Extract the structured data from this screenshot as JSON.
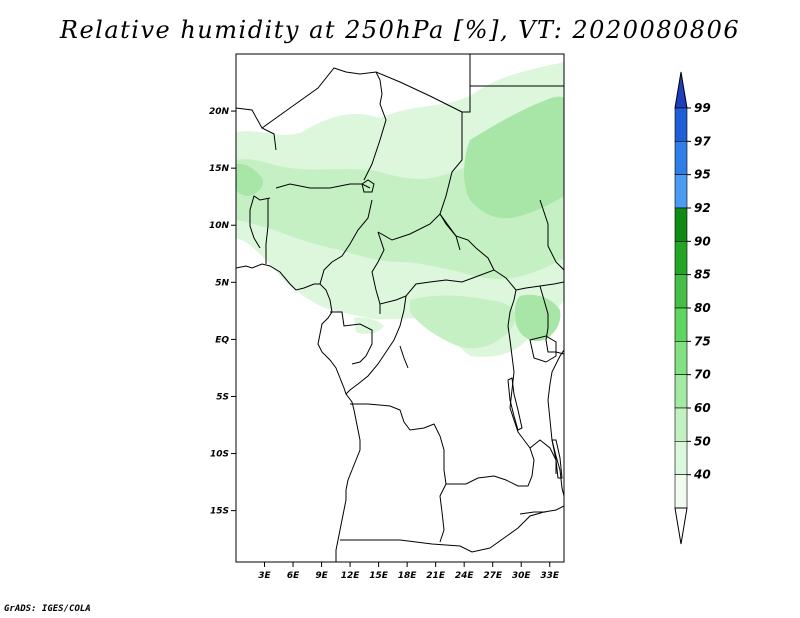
{
  "title": "Relative humidity at 250hPa [%], VT: 2020080806",
  "credit": "GrADS: IGES/COLA",
  "map": {
    "lon_range": [
      0,
      34.5
    ],
    "lat_range": [
      -19.5,
      25
    ],
    "lat_ticks": [
      {
        "value": 20,
        "label": "20N"
      },
      {
        "value": 15,
        "label": "15N"
      },
      {
        "value": 10,
        "label": "10N"
      },
      {
        "value": 5,
        "label": "5N"
      },
      {
        "value": 0,
        "label": "EQ"
      },
      {
        "value": -5,
        "label": "5S"
      },
      {
        "value": -10,
        "label": "10S"
      },
      {
        "value": -15,
        "label": "15S"
      }
    ],
    "lon_ticks": [
      {
        "value": 3,
        "label": "3E"
      },
      {
        "value": 6,
        "label": "6E"
      },
      {
        "value": 9,
        "label": "9E"
      },
      {
        "value": 12,
        "label": "12E"
      },
      {
        "value": 15,
        "label": "15E"
      },
      {
        "value": 18,
        "label": "18E"
      },
      {
        "value": 21,
        "label": "21E"
      },
      {
        "value": 24,
        "label": "24E"
      },
      {
        "value": 27,
        "label": "27E"
      },
      {
        "value": 30,
        "label": "30E"
      },
      {
        "value": 33,
        "label": "33E"
      }
    ]
  },
  "colorbar": {
    "levels": [
      "99",
      "97",
      "95",
      "92",
      "90",
      "85",
      "80",
      "75",
      "70",
      "60",
      "50",
      "40"
    ],
    "colors": [
      "#1e5fd8",
      "#2f7ee8",
      "#4a9bf2",
      "#0f8a12",
      "#25a525",
      "#45bf45",
      "#5fd65f",
      "#82e182",
      "#a3eba3",
      "#c2f2c2",
      "#dcf8dc",
      "#effcef"
    ],
    "upper_arrow_color": "#1b3fbf",
    "lower_arrow_color": "#ffffff"
  },
  "humidity_colors": {
    "light": "#dcf7dc",
    "medium": "#c4f0c4",
    "dark": "#a8e6a8"
  }
}
